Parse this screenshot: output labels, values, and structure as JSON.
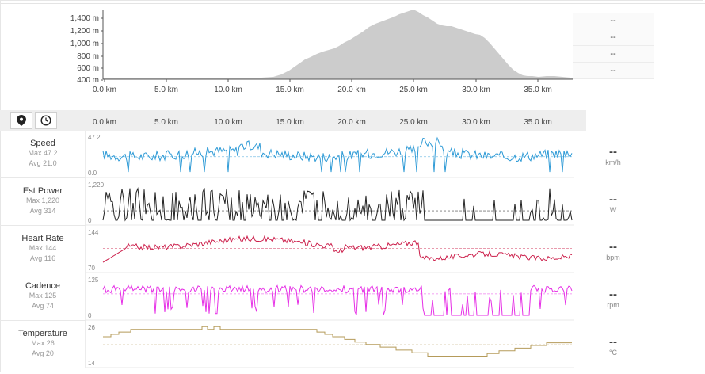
{
  "elevation": {
    "y_labels": [
      "1,400 m",
      "1,200 m",
      "1,000 m",
      "800 m",
      "600 m",
      "400 m"
    ],
    "x_labels": [
      "0.0 km",
      "5.0 km",
      "10.0 km",
      "15.0 km",
      "20.0 km",
      "25.0 km",
      "30.0 km",
      "35.0 km"
    ],
    "readouts": [
      "--",
      "--",
      "--",
      "--"
    ],
    "fill_color": "#cccccc"
  },
  "toolbar": {
    "x_labels": [
      "0.0 km",
      "5.0 km",
      "10.0 km",
      "15.0 km",
      "20.0 km",
      "25.0 km",
      "30.0 km",
      "35.0 km"
    ],
    "location_icon": "map-pin-icon",
    "time_icon": "clock-icon"
  },
  "rows": [
    {
      "key": "speed",
      "title": "Speed",
      "max": "Max 47.2",
      "avg": "Avg 21.0",
      "axis_max": "47.2",
      "axis_min": "0.0",
      "value": "--",
      "unit": "km/h",
      "color": "#2d9ad6"
    },
    {
      "key": "power",
      "title": "Est Power",
      "max": "Max 1,220",
      "avg": "Avg 314",
      "axis_max": "1,220",
      "axis_min": "0",
      "value": "--",
      "unit": "W",
      "color": "#222222"
    },
    {
      "key": "hr",
      "title": "Heart Rate",
      "max": "Max 144",
      "avg": "Avg 116",
      "axis_max": "144",
      "axis_min": "70",
      "value": "--",
      "unit": "bpm",
      "color": "#cc1f4b"
    },
    {
      "key": "cadence",
      "title": "Cadence",
      "max": "Max 125",
      "avg": "Avg 74",
      "axis_max": "125",
      "axis_min": "0",
      "value": "--",
      "unit": "rpm",
      "color": "#e62ee6"
    },
    {
      "key": "temp",
      "title": "Temperature",
      "max": "Max 26",
      "avg": "Avg 20",
      "axis_max": "26",
      "axis_min": "14",
      "value": "--",
      "unit": "°C",
      "color": "#b59b5a"
    }
  ]
}
